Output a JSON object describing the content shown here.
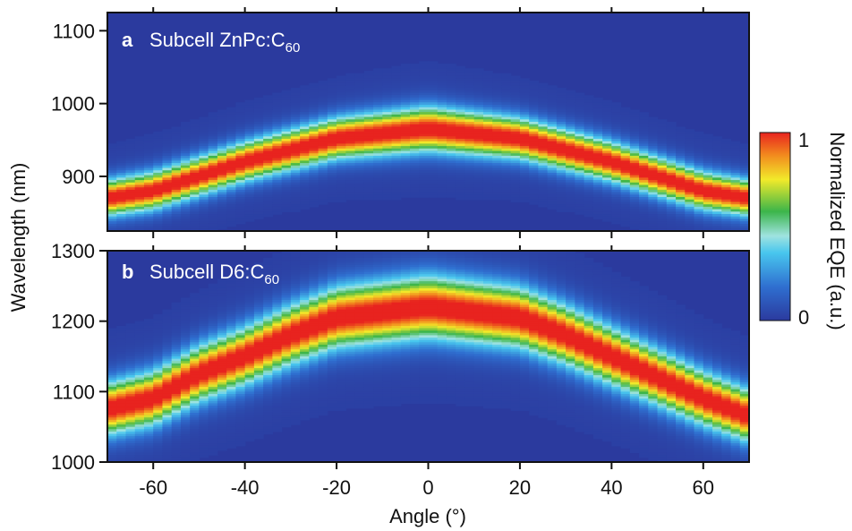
{
  "chart_data": [
    {
      "type": "heatmap",
      "panel_letter": "a",
      "panel_title": "Subcell ZnPc:C",
      "panel_title_sub": "60",
      "x": {
        "min": -70,
        "max": 70,
        "ticks": [
          -60,
          -40,
          -20,
          0,
          20,
          40,
          60
        ]
      },
      "y": {
        "min": 825,
        "max": 1125,
        "ticks": [
          900,
          1000,
          1100
        ],
        "tick_labels": [
          "900",
          "1000",
          "1100"
        ]
      },
      "ridge": {
        "angles": [
          -70,
          -60,
          -40,
          -20,
          0,
          20,
          40,
          60,
          70
        ],
        "peak_wavelength_nm": [
          870,
          880,
          920,
          952,
          965,
          952,
          920,
          880,
          870
        ],
        "fwhm_nm": [
          40,
          42,
          44,
          46,
          50,
          46,
          44,
          42,
          40
        ]
      },
      "grid": false
    },
    {
      "type": "heatmap",
      "panel_letter": "b",
      "panel_title": "Subcell D6:C",
      "panel_title_sub": "60",
      "x": {
        "min": -70,
        "max": 70,
        "ticks": [
          -60,
          -40,
          -20,
          0,
          20,
          40,
          60
        ],
        "tick_labels": [
          "-60",
          "-40",
          "-20",
          "0",
          "20",
          "40",
          "60"
        ]
      },
      "y": {
        "min": 1000,
        "max": 1300,
        "ticks": [
          1000,
          1100,
          1200,
          1300
        ],
        "tick_labels": [
          "1000",
          "1100",
          "1200",
          "1300"
        ]
      },
      "ridge": {
        "angles": [
          -70,
          -60,
          -50,
          -40,
          -30,
          -20,
          0,
          20,
          30,
          40,
          50,
          60,
          70
        ],
        "peak_wavelength_nm": [
          1075,
          1090,
          1125,
          1150,
          1180,
          1205,
          1220,
          1205,
          1180,
          1150,
          1120,
          1090,
          1065
        ],
        "fwhm_nm": [
          60,
          62,
          64,
          66,
          68,
          70,
          72,
          70,
          68,
          66,
          64,
          62,
          60
        ]
      },
      "grid": false
    }
  ],
  "axes": {
    "xlabel": "Angle (°)",
    "ylabel": "Wavelength (nm)"
  },
  "colorbar": {
    "label": "Normalized EQE (a.u.)",
    "min_label": "0",
    "max_label": "1",
    "colormap": "jet",
    "stops": [
      "#2b3a9e",
      "#2f6fd0",
      "#48c6ee",
      "#9fe3e0",
      "#3cb54a",
      "#f2ea2a",
      "#f28a1e",
      "#e8231f"
    ]
  }
}
